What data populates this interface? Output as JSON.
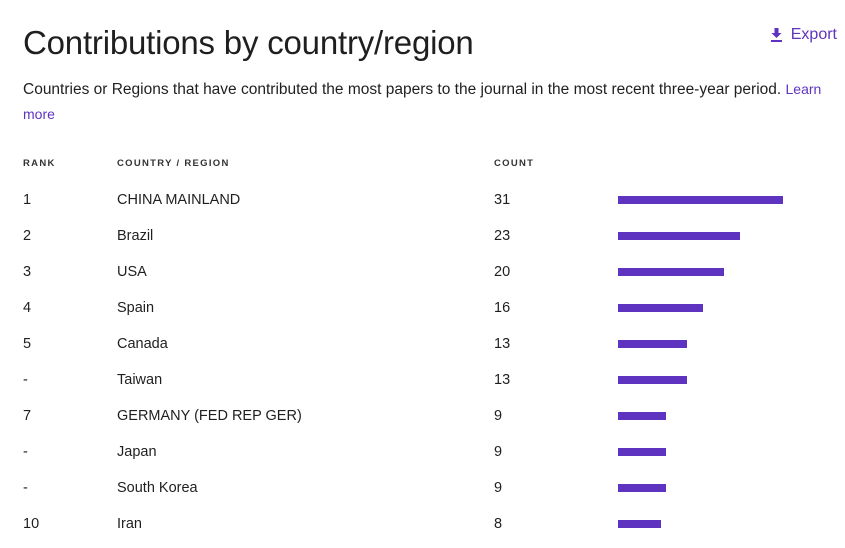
{
  "title": "Contributions by country/region",
  "export_label": "Export",
  "description": "Countries or Regions that have contributed the most papers to the journal in the most recent three-year period.",
  "learn_more": "Learn more",
  "headers": {
    "rank": "RANK",
    "country": "COUNTRY / REGION",
    "count": "COUNT"
  },
  "colors": {
    "accent": "#5e33bf"
  },
  "chart_data": {
    "type": "bar",
    "categories": [
      "CHINA MAINLAND",
      "Brazil",
      "USA",
      "Spain",
      "Canada",
      "Taiwan",
      "GERMANY (FED REP GER)",
      "Japan",
      "South Korea",
      "Iran"
    ],
    "ranks": [
      "1",
      "2",
      "3",
      "4",
      "5",
      "-",
      "7",
      "-",
      "-",
      "10"
    ],
    "values": [
      31,
      23,
      20,
      16,
      13,
      13,
      9,
      9,
      9,
      8
    ],
    "orientation": "horizontal"
  }
}
